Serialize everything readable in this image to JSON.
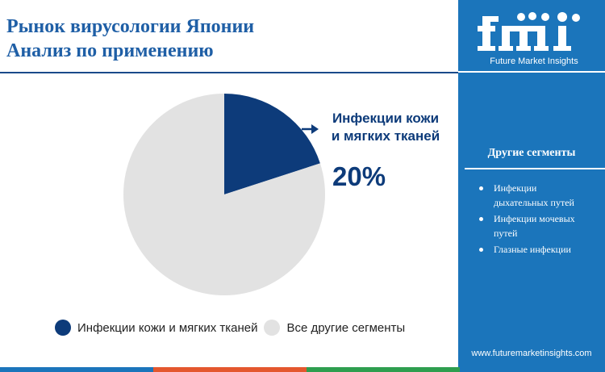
{
  "title": {
    "line1": "Рынок вирусологии Японии",
    "line2": "Анализ по применению"
  },
  "chart_data": {
    "type": "pie",
    "slices": [
      {
        "name": "Инфекции кожи и мягких тканей",
        "value": 20,
        "color": "#0d3b7a"
      },
      {
        "name": "Все другие сегменты",
        "value": 80,
        "color": "#e2e2e2"
      }
    ],
    "annotation": {
      "label_line1": "Инфекции кожи",
      "label_line2": "и мягких тканей",
      "value_text": "20%"
    },
    "legend": [
      "Инфекции кожи и мягких тканей",
      "Все другие сегменты"
    ]
  },
  "sidebar": {
    "logo_text": "fmi",
    "logo_subtitle": "Future Market Insights",
    "segments_title": "Другие сегменты",
    "segments": [
      {
        "line1": "Инфекции",
        "line2": "дыхательных путей"
      },
      {
        "line1": "Инфекции мочевых",
        "line2": "путей"
      },
      {
        "line1": "Глазные инфекции",
        "line2": ""
      }
    ],
    "website": "www.futuremarketinsights.com"
  },
  "colors": {
    "primary": "#0d3b7a",
    "title": "#1f5fa6",
    "sidebar": "#1b75bb",
    "other": "#e2e2e2",
    "bottom_bar": [
      "#1b75bb",
      "#e4572e",
      "#2e9e4f",
      "#1b75bb"
    ]
  }
}
